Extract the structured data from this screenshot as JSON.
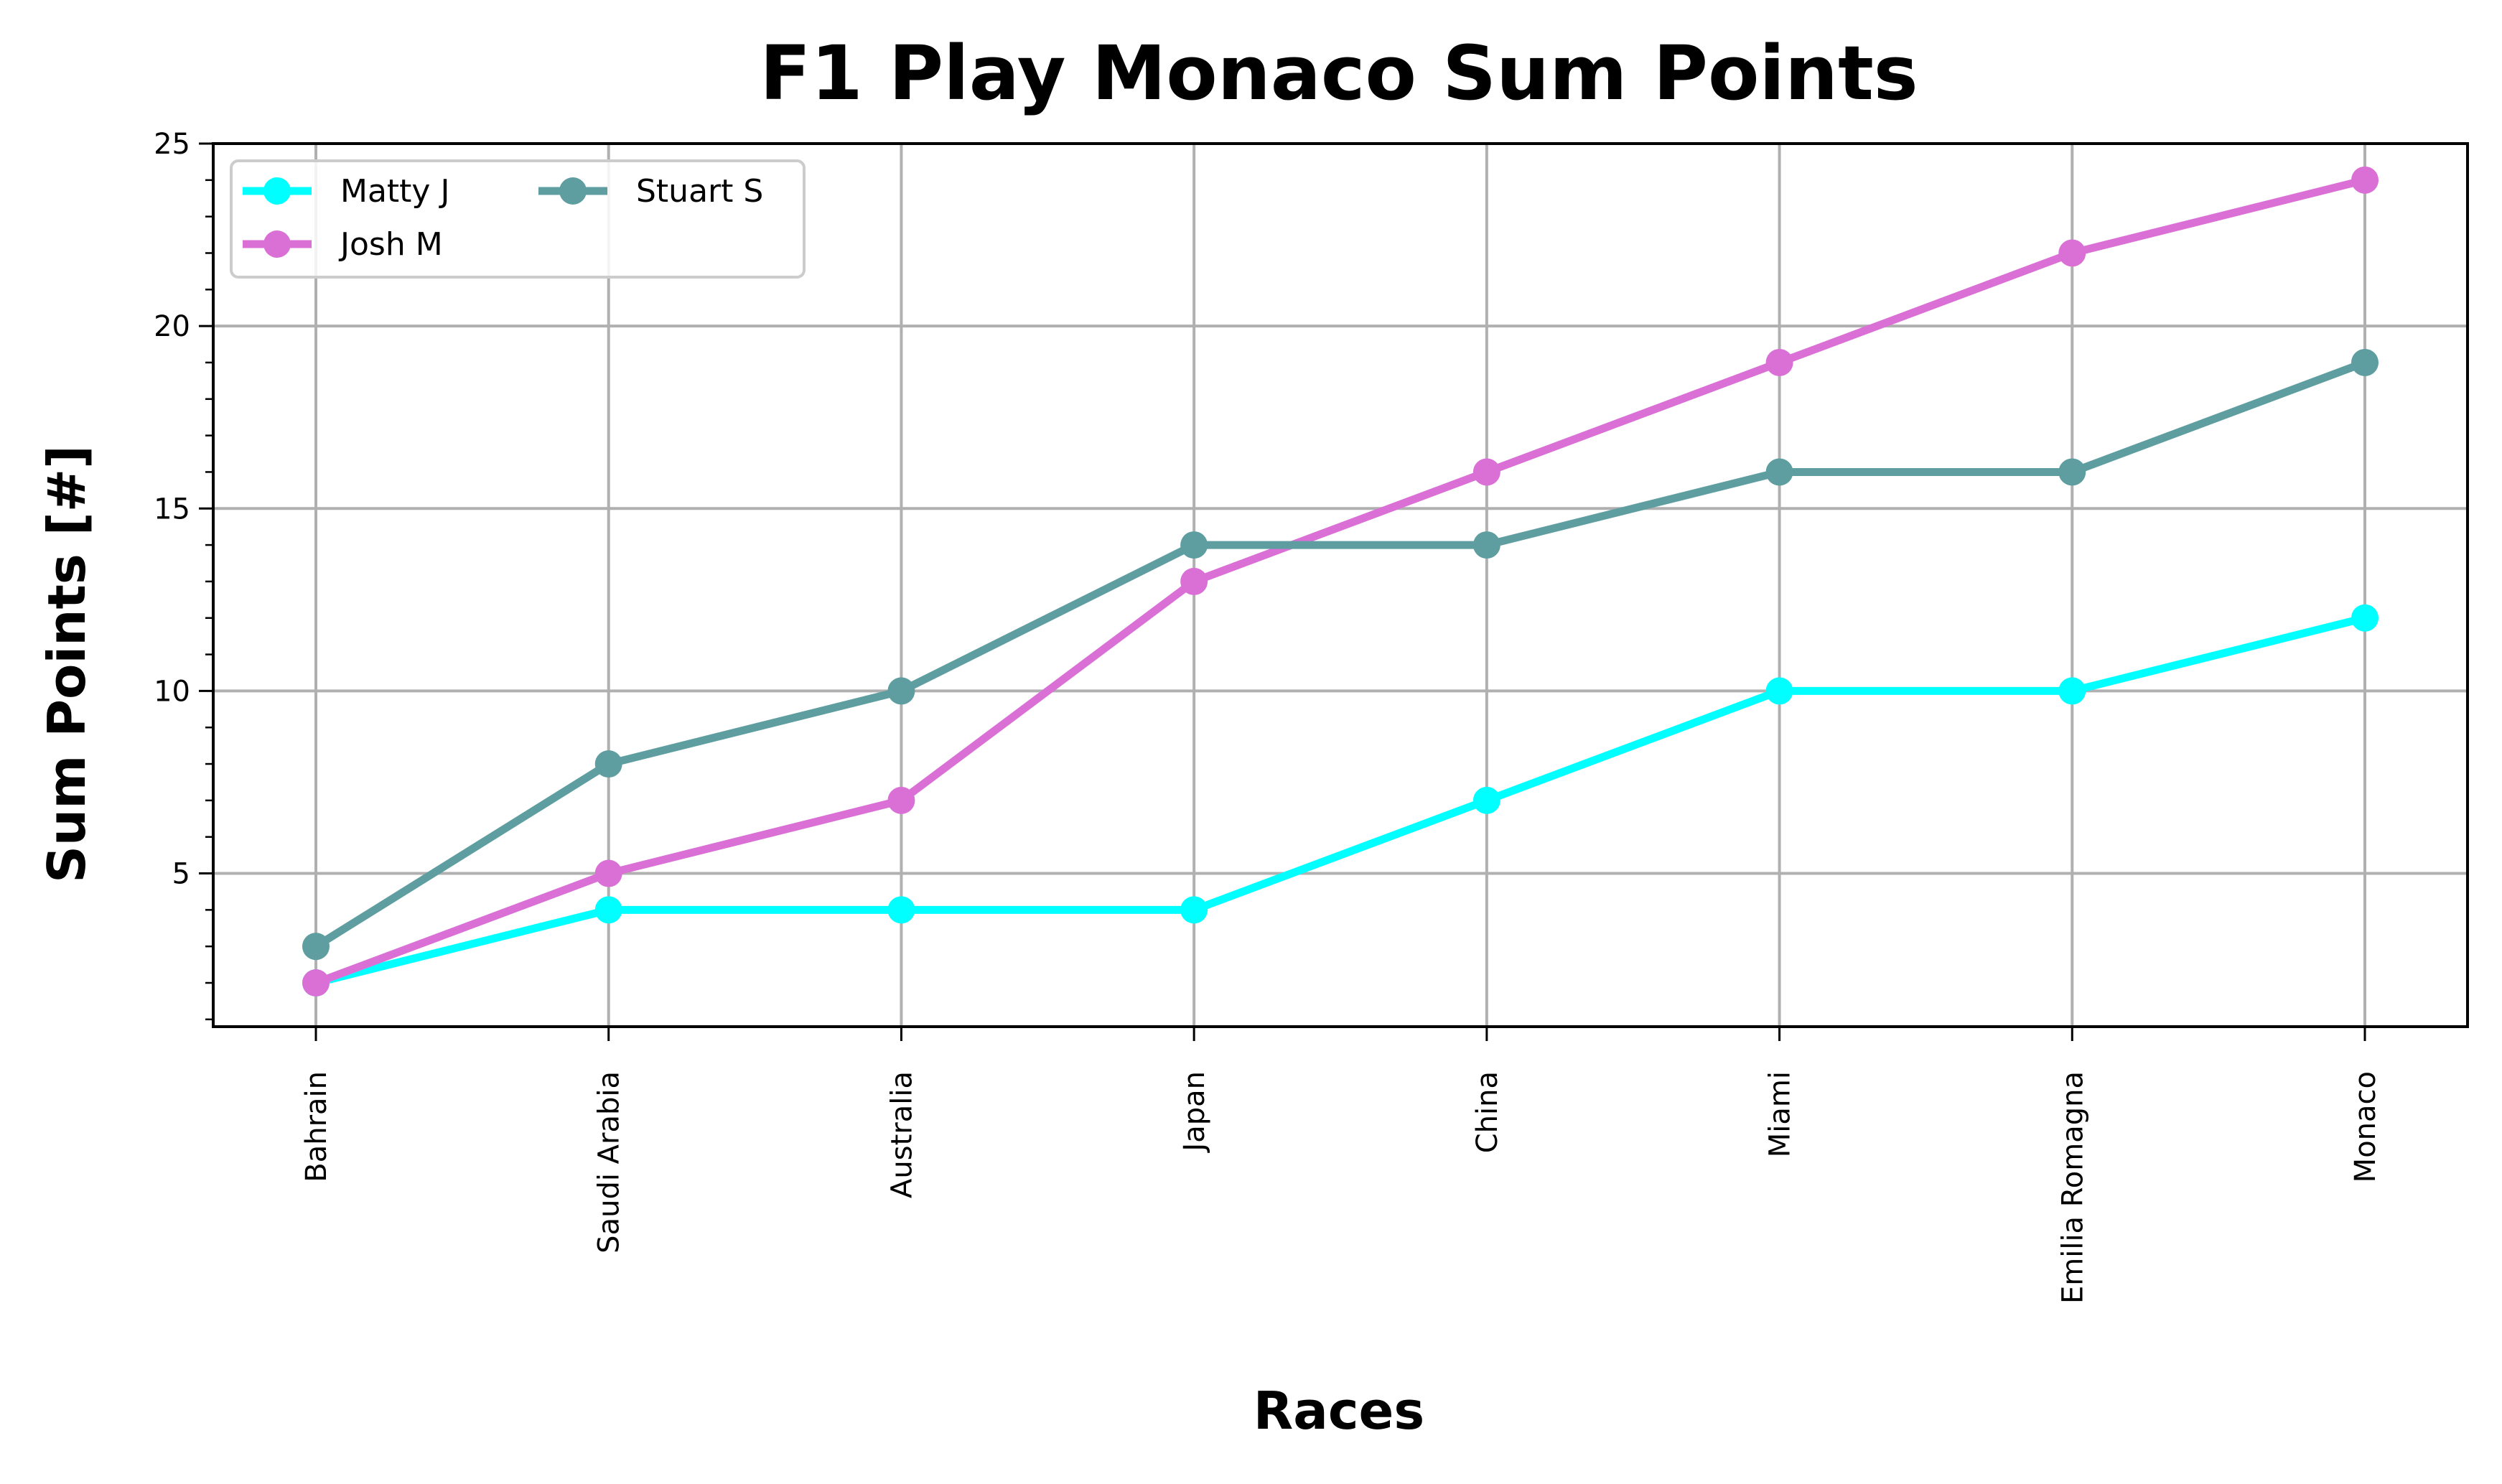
{
  "chart_data": {
    "type": "line",
    "title": "F1 Play Monaco Sum Points",
    "xlabel": "Races",
    "ylabel": "Sum Points [#]",
    "categories": [
      "Bahrain",
      "Saudi Arabia",
      "Australia",
      "Japan",
      "China",
      "Miami",
      "Emilia Romagna",
      "Monaco"
    ],
    "ylim": [
      0.8,
      25
    ],
    "yticks": [
      5,
      10,
      15,
      20,
      25
    ],
    "grid": true,
    "legend": "top-left",
    "series": [
      {
        "name": "Matty J",
        "color": "#00FFFF",
        "values": [
          2,
          4,
          4,
          4,
          7,
          10,
          10,
          12
        ]
      },
      {
        "name": "Josh M",
        "color": "#DA70D6",
        "values": [
          2,
          5,
          7,
          13,
          16,
          19,
          22,
          24
        ]
      },
      {
        "name": "Stuart S",
        "color": "#5F9EA0",
        "values": [
          3,
          8,
          10,
          14,
          14,
          16,
          16,
          19
        ]
      }
    ]
  }
}
